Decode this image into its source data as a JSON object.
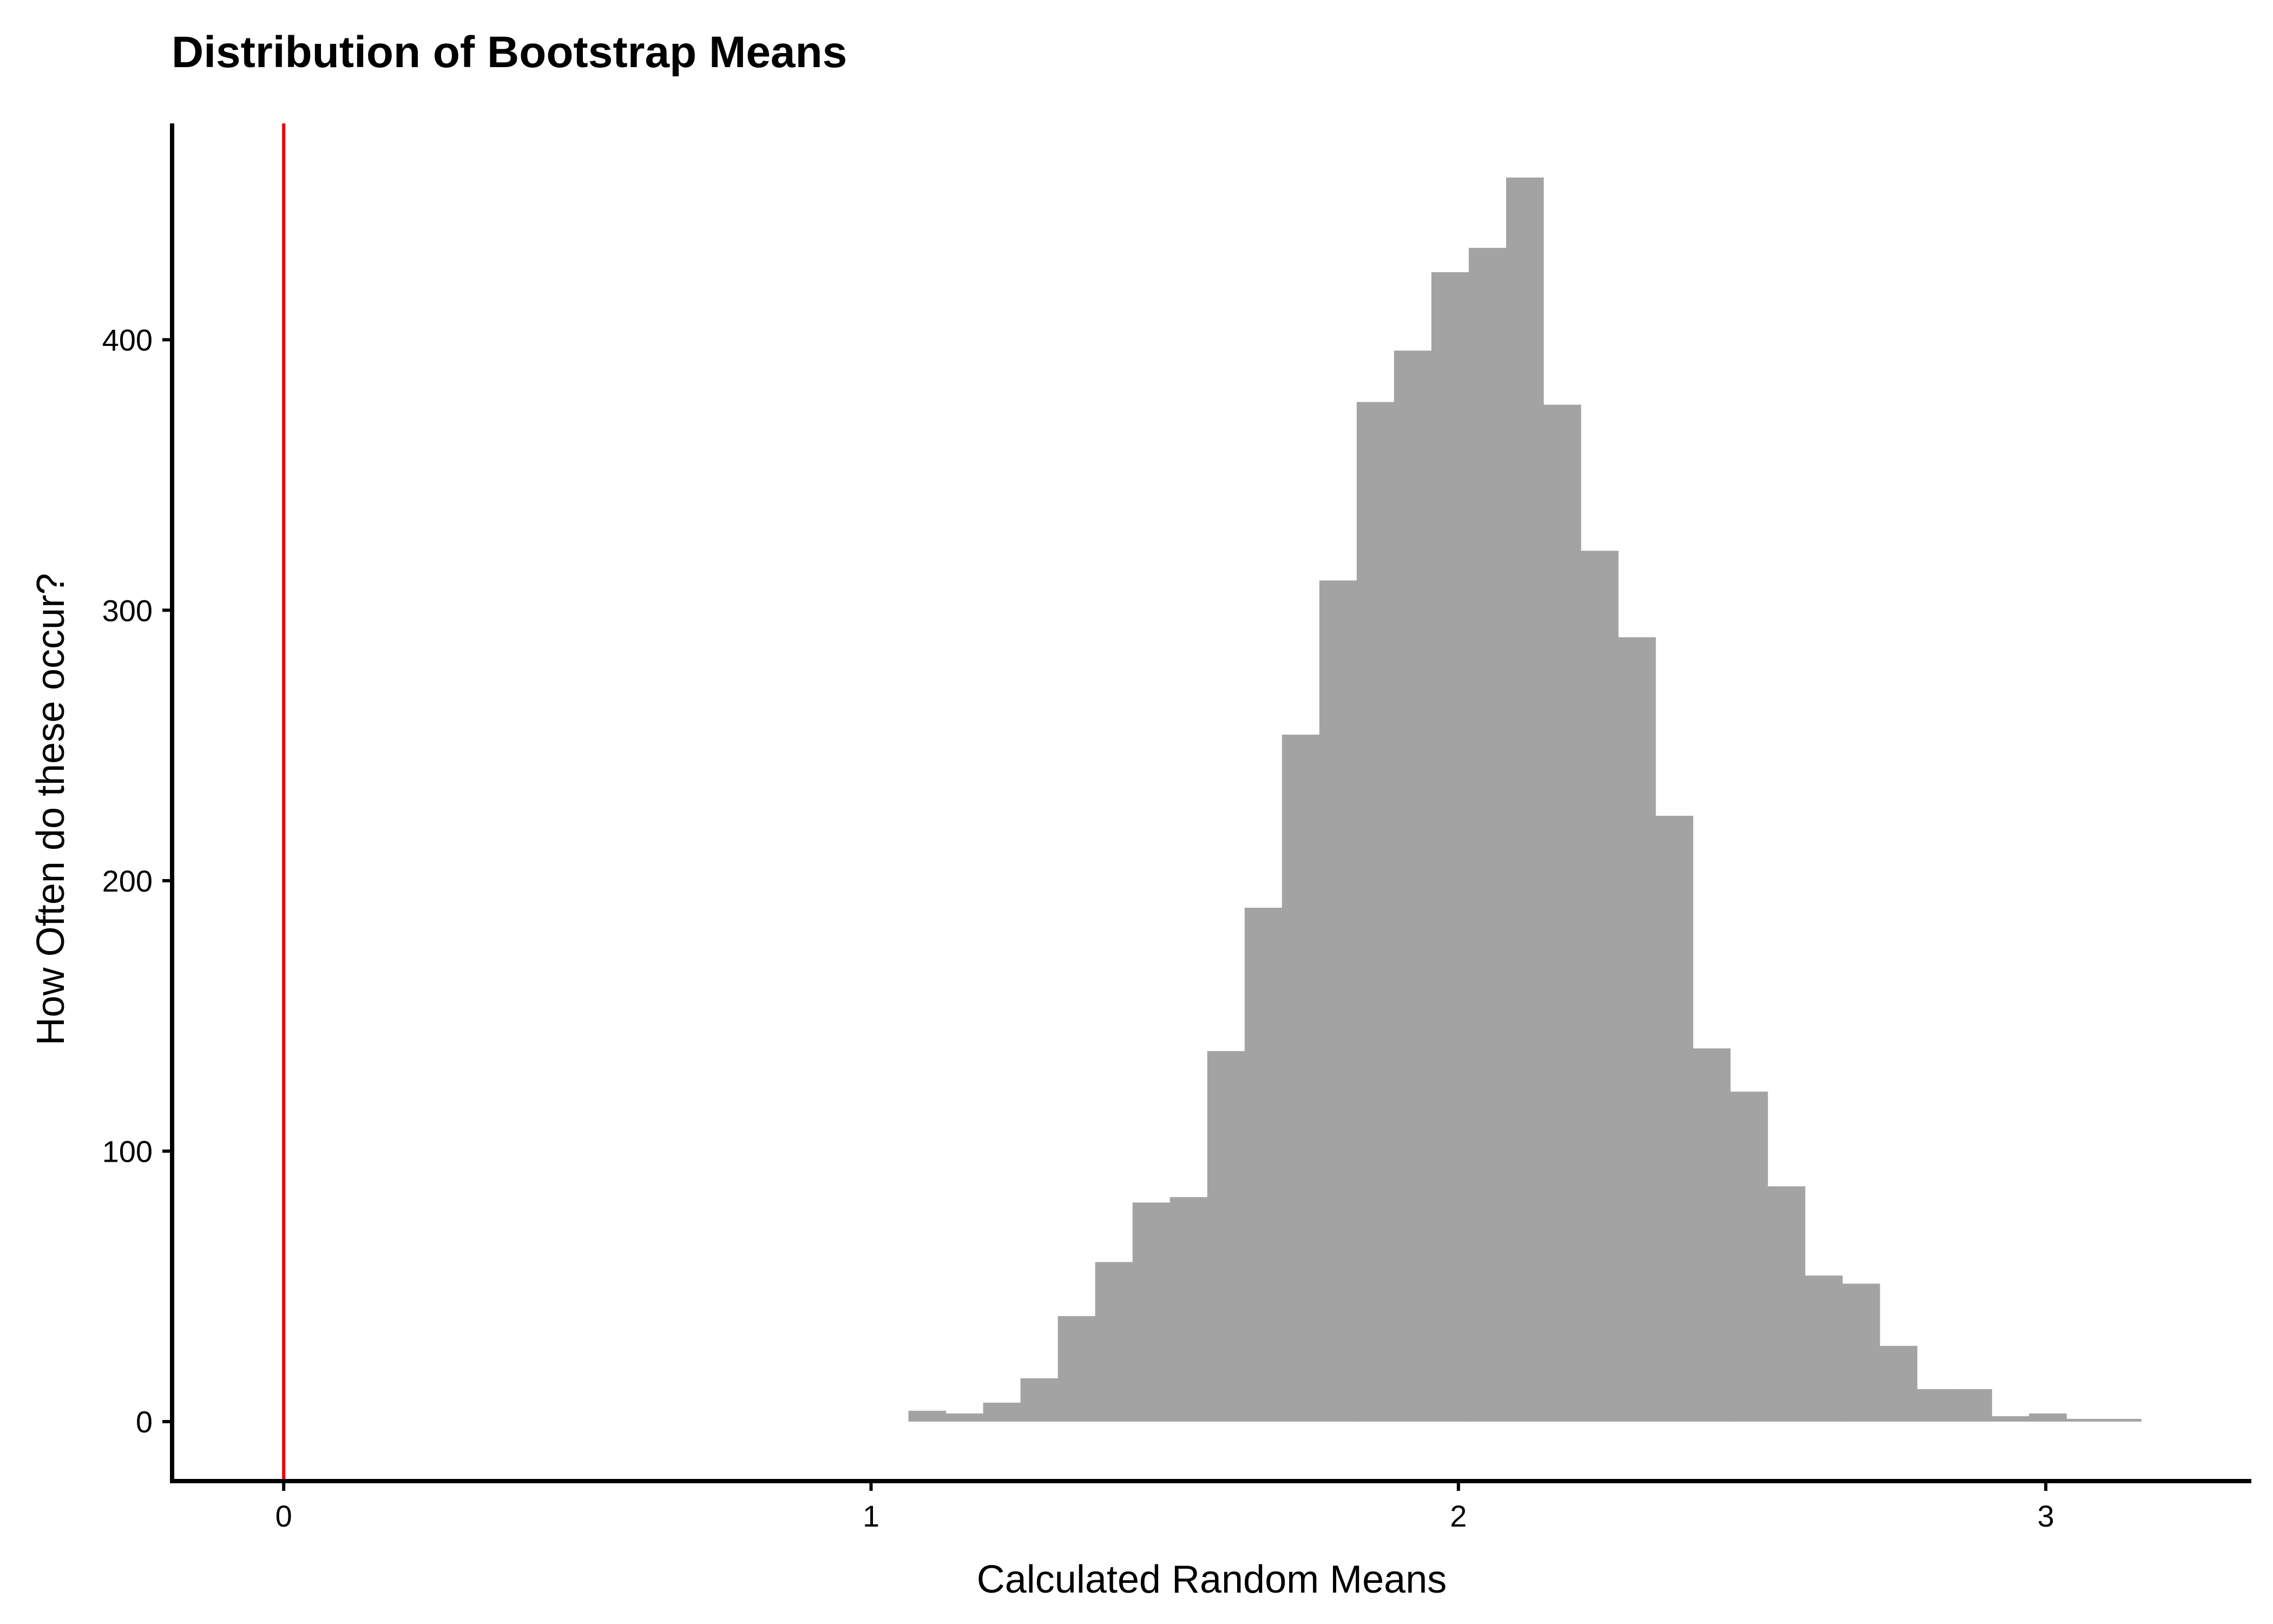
{
  "chart_data": {
    "type": "bar",
    "title": "Distribution of Bootstrap Means",
    "xlabel": "Calculated Random Means",
    "ylabel": "How Often do these occur?",
    "xlim": [
      -0.19,
      3.35
    ],
    "ylim": [
      -22,
      480
    ],
    "x_ticks": [
      0,
      1,
      2,
      3
    ],
    "x_tick_labels": [
      "0",
      "1",
      "2",
      "3"
    ],
    "y_ticks": [
      0,
      100,
      200,
      300,
      400
    ],
    "y_tick_labels": [
      "0",
      "100",
      "200",
      "300",
      "400"
    ],
    "bin_width": 0.0636,
    "bin_start": 1.0636,
    "bins": [
      {
        "x0": 1.0636,
        "x1": 1.1272,
        "count": 4
      },
      {
        "x0": 1.1272,
        "x1": 1.1908,
        "count": 3
      },
      {
        "x0": 1.1908,
        "x1": 1.2544,
        "count": 7
      },
      {
        "x0": 1.2544,
        "x1": 1.318,
        "count": 16
      },
      {
        "x0": 1.318,
        "x1": 1.3816,
        "count": 39
      },
      {
        "x0": 1.3816,
        "x1": 1.4452,
        "count": 59
      },
      {
        "x0": 1.4452,
        "x1": 1.5088,
        "count": 81
      },
      {
        "x0": 1.5088,
        "x1": 1.5724,
        "count": 83
      },
      {
        "x0": 1.5724,
        "x1": 1.636,
        "count": 137
      },
      {
        "x0": 1.636,
        "x1": 1.6996,
        "count": 190
      },
      {
        "x0": 1.6996,
        "x1": 1.7632,
        "count": 254
      },
      {
        "x0": 1.7632,
        "x1": 1.8268,
        "count": 311
      },
      {
        "x0": 1.8268,
        "x1": 1.8904,
        "count": 377
      },
      {
        "x0": 1.8904,
        "x1": 1.954,
        "count": 396
      },
      {
        "x0": 1.954,
        "x1": 2.0176,
        "count": 425
      },
      {
        "x0": 2.0176,
        "x1": 2.0812,
        "count": 434
      },
      {
        "x0": 2.0812,
        "x1": 2.1448,
        "count": 460
      },
      {
        "x0": 2.1448,
        "x1": 2.2084,
        "count": 376
      },
      {
        "x0": 2.2084,
        "x1": 2.272,
        "count": 322
      },
      {
        "x0": 2.272,
        "x1": 2.3356,
        "count": 290
      },
      {
        "x0": 2.3356,
        "x1": 2.3992,
        "count": 224
      },
      {
        "x0": 2.3992,
        "x1": 2.4628,
        "count": 138
      },
      {
        "x0": 2.4628,
        "x1": 2.5264,
        "count": 122
      },
      {
        "x0": 2.5264,
        "x1": 2.59,
        "count": 87
      },
      {
        "x0": 2.59,
        "x1": 2.6536,
        "count": 54
      },
      {
        "x0": 2.6536,
        "x1": 2.7172,
        "count": 51
      },
      {
        "x0": 2.7172,
        "x1": 2.7808,
        "count": 28
      },
      {
        "x0": 2.7808,
        "x1": 2.8444,
        "count": 12
      },
      {
        "x0": 2.8444,
        "x1": 2.908,
        "count": 12
      },
      {
        "x0": 2.908,
        "x1": 2.9716,
        "count": 2
      },
      {
        "x0": 2.9716,
        "x1": 3.0352,
        "count": 3
      },
      {
        "x0": 3.0352,
        "x1": 3.0988,
        "count": 1
      },
      {
        "x0": 3.0988,
        "x1": 3.1624,
        "count": 1
      }
    ],
    "reference_line": {
      "x": 0,
      "color": "#e8000b"
    },
    "bar_color": "#a3a3a3",
    "axis_color": "#000000",
    "grid": false,
    "legend": "none"
  }
}
